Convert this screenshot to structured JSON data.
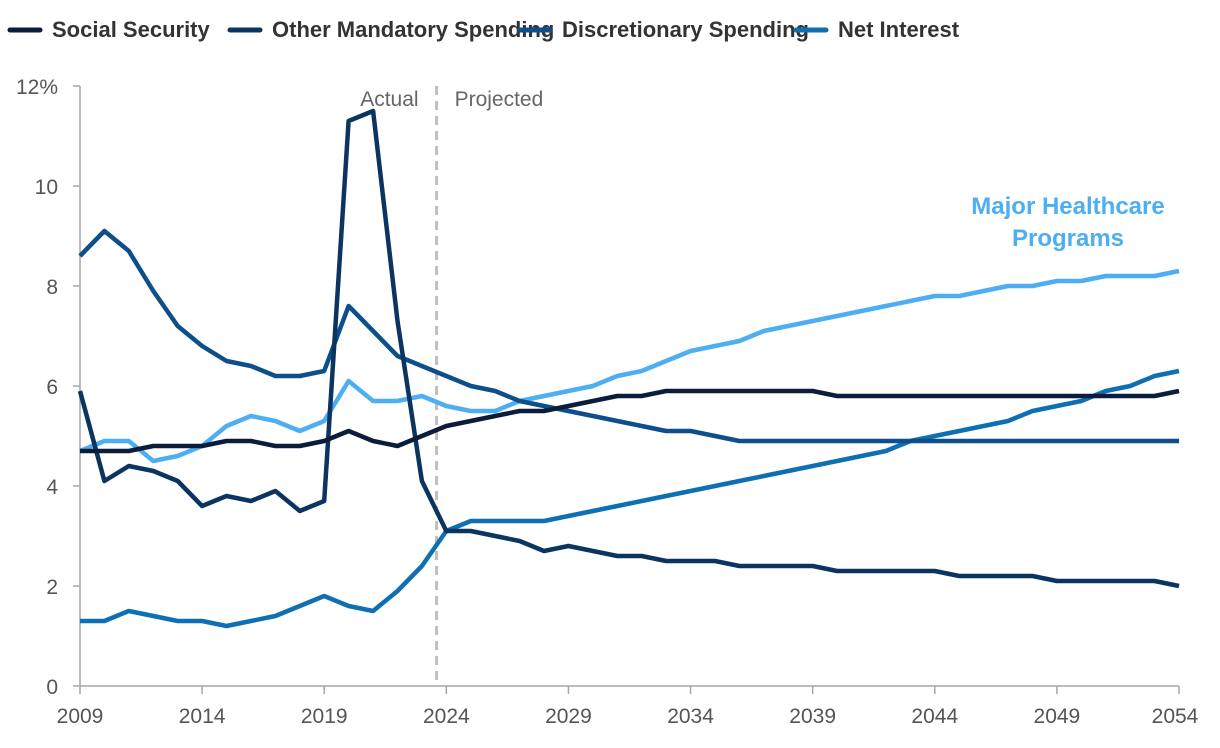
{
  "chart_data": {
    "type": "line",
    "title": "",
    "xlabel": "",
    "ylabel": "",
    "x_range": [
      2009,
      2054
    ],
    "ylim": [
      0,
      12
    ],
    "y_ticks": [
      {
        "value": 0,
        "label": "0"
      },
      {
        "value": 2,
        "label": "2"
      },
      {
        "value": 4,
        "label": "4"
      },
      {
        "value": 6,
        "label": "6"
      },
      {
        "value": 8,
        "label": "8"
      },
      {
        "value": 10,
        "label": "10"
      },
      {
        "value": 12,
        "label": "12%"
      }
    ],
    "x_ticks": [
      {
        "value": 2009,
        "label": "2009"
      },
      {
        "value": 2014,
        "label": "2014"
      },
      {
        "value": 2019,
        "label": "2019"
      },
      {
        "value": 2024,
        "label": "2024"
      },
      {
        "value": 2029,
        "label": "2029"
      },
      {
        "value": 2034,
        "label": "2034"
      },
      {
        "value": 2039,
        "label": "2039"
      },
      {
        "value": 2044,
        "label": "2044"
      },
      {
        "value": 2049,
        "label": "2049"
      },
      {
        "value": 2054,
        "label": "2054"
      }
    ],
    "divider": {
      "x": 2023.6,
      "left_label": "Actual",
      "right_label": "Projected"
    },
    "legend_position": "top",
    "x": [
      2009,
      2010,
      2011,
      2012,
      2013,
      2014,
      2015,
      2016,
      2017,
      2018,
      2019,
      2020,
      2021,
      2022,
      2023,
      2024,
      2025,
      2026,
      2027,
      2028,
      2029,
      2030,
      2031,
      2032,
      2033,
      2034,
      2035,
      2036,
      2037,
      2038,
      2039,
      2040,
      2041,
      2042,
      2043,
      2044,
      2045,
      2046,
      2047,
      2048,
      2049,
      2050,
      2051,
      2052,
      2053,
      2054
    ],
    "series": [
      {
        "name": "Social Security",
        "color": "#0b1d3a",
        "in_legend": true,
        "values": [
          4.7,
          4.7,
          4.7,
          4.8,
          4.8,
          4.8,
          4.9,
          4.9,
          4.8,
          4.8,
          4.9,
          5.1,
          4.9,
          4.8,
          5.0,
          5.2,
          5.3,
          5.4,
          5.5,
          5.5,
          5.6,
          5.7,
          5.8,
          5.8,
          5.9,
          5.9,
          5.9,
          5.9,
          5.9,
          5.9,
          5.9,
          5.8,
          5.8,
          5.8,
          5.8,
          5.8,
          5.8,
          5.8,
          5.8,
          5.8,
          5.8,
          5.8,
          5.8,
          5.8,
          5.8,
          5.9
        ]
      },
      {
        "name": "Other Mandatory Spending",
        "color": "#0c3460",
        "in_legend": true,
        "values": [
          5.9,
          4.1,
          4.4,
          4.3,
          4.1,
          3.6,
          3.8,
          3.7,
          3.9,
          3.5,
          3.7,
          11.3,
          11.5,
          7.3,
          4.1,
          3.1,
          3.1,
          3.0,
          2.9,
          2.7,
          2.8,
          2.7,
          2.6,
          2.6,
          2.5,
          2.5,
          2.5,
          2.4,
          2.4,
          2.4,
          2.4,
          2.3,
          2.3,
          2.3,
          2.3,
          2.3,
          2.2,
          2.2,
          2.2,
          2.2,
          2.1,
          2.1,
          2.1,
          2.1,
          2.1,
          2.0
        ]
      },
      {
        "name": "Discretionary Spending",
        "color": "#0d4f8a",
        "in_legend": true,
        "values": [
          8.6,
          9.1,
          8.7,
          7.9,
          7.2,
          6.8,
          6.5,
          6.4,
          6.2,
          6.2,
          6.3,
          7.6,
          7.1,
          6.6,
          6.4,
          6.2,
          6.0,
          5.9,
          5.7,
          5.6,
          5.5,
          5.4,
          5.3,
          5.2,
          5.1,
          5.1,
          5.0,
          4.9,
          4.9,
          4.9,
          4.9,
          4.9,
          4.9,
          4.9,
          4.9,
          4.9,
          4.9,
          4.9,
          4.9,
          4.9,
          4.9,
          4.9,
          4.9,
          4.9,
          4.9,
          4.9
        ]
      },
      {
        "name": "Net Interest",
        "color": "#0e6fb3",
        "in_legend": true,
        "values": [
          1.3,
          1.3,
          1.5,
          1.4,
          1.3,
          1.3,
          1.2,
          1.3,
          1.4,
          1.6,
          1.8,
          1.6,
          1.5,
          1.9,
          2.4,
          3.1,
          3.3,
          3.3,
          3.3,
          3.3,
          3.4,
          3.5,
          3.6,
          3.7,
          3.8,
          3.9,
          4.0,
          4.1,
          4.2,
          4.3,
          4.4,
          4.5,
          4.6,
          4.7,
          4.9,
          5.0,
          5.1,
          5.2,
          5.3,
          5.5,
          5.6,
          5.7,
          5.9,
          6.0,
          6.2,
          6.3
        ]
      },
      {
        "name": "Major Healthcare Programs",
        "color": "#4eaef2",
        "in_legend": false,
        "label_lines": [
          "Major Healthcare",
          "Programs"
        ],
        "values": [
          4.7,
          4.9,
          4.9,
          4.5,
          4.6,
          4.8,
          5.2,
          5.4,
          5.3,
          5.1,
          5.3,
          6.1,
          5.7,
          5.7,
          5.8,
          5.6,
          5.5,
          5.5,
          5.7,
          5.8,
          5.9,
          6.0,
          6.2,
          6.3,
          6.5,
          6.7,
          6.8,
          6.9,
          7.1,
          7.2,
          7.3,
          7.4,
          7.5,
          7.6,
          7.7,
          7.8,
          7.8,
          7.9,
          8.0,
          8.0,
          8.1,
          8.1,
          8.2,
          8.2,
          8.2,
          8.3
        ]
      }
    ]
  }
}
